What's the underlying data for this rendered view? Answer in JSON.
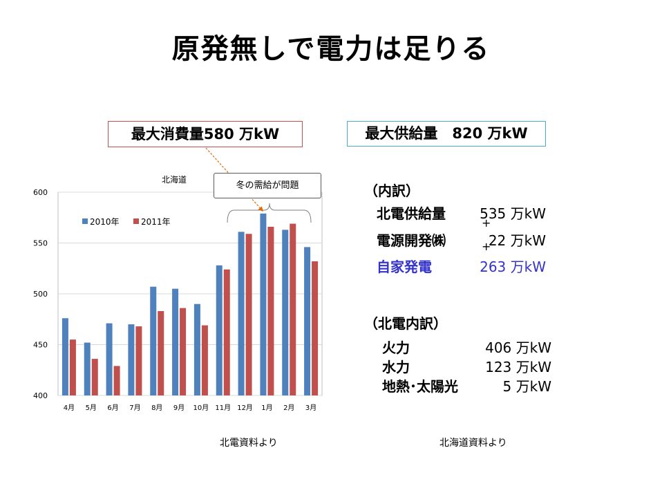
{
  "title": "原発無しで電力は足りる",
  "max_consumption": "最大消費量580 万kW",
  "max_supply": "最大供給量　820 万kW",
  "callout": "冬の需給が問題",
  "breakdown": {
    "heading": "（内訳）",
    "rows": [
      {
        "label": "北電供給量",
        "value": "535 万kW"
      },
      {
        "label": "電源開発㈱",
        "value": "22 万kW"
      },
      {
        "label": "自家発電",
        "value": "263 万kW"
      }
    ],
    "plus": "+"
  },
  "hokuden": {
    "heading": "（北電内訳）",
    "rows": [
      {
        "label": "火力",
        "value": "406 万kW"
      },
      {
        "label": "水力",
        "value": "123 万kW"
      },
      {
        "label": "地熱･太陽光",
        "value": "5 万kW"
      }
    ]
  },
  "sources": {
    "left": "北電資料より",
    "right": "北海道資料より"
  },
  "colors": {
    "series_2010": "#4f81bd",
    "series_2011": "#c0504d",
    "blue_text": "#3333cc"
  },
  "chart_data": {
    "type": "bar",
    "title": "北海道",
    "categories": [
      "4月",
      "5月",
      "6月",
      "7月",
      "8月",
      "9月",
      "10月",
      "11月",
      "12月",
      "1月",
      "2月",
      "3月"
    ],
    "series": [
      {
        "name": "2010年",
        "values": [
          476,
          452,
          471,
          470,
          507,
          505,
          490,
          528,
          561,
          579,
          563,
          546
        ]
      },
      {
        "name": "2011年",
        "values": [
          455,
          436,
          429,
          468,
          483,
          486,
          469,
          524,
          559,
          566,
          569,
          532
        ]
      }
    ],
    "ylim": [
      400,
      600
    ],
    "yticks": [
      400,
      450,
      500,
      550,
      600
    ],
    "grid": true,
    "legend": "top-left",
    "xlabel": "",
    "ylabel": ""
  }
}
